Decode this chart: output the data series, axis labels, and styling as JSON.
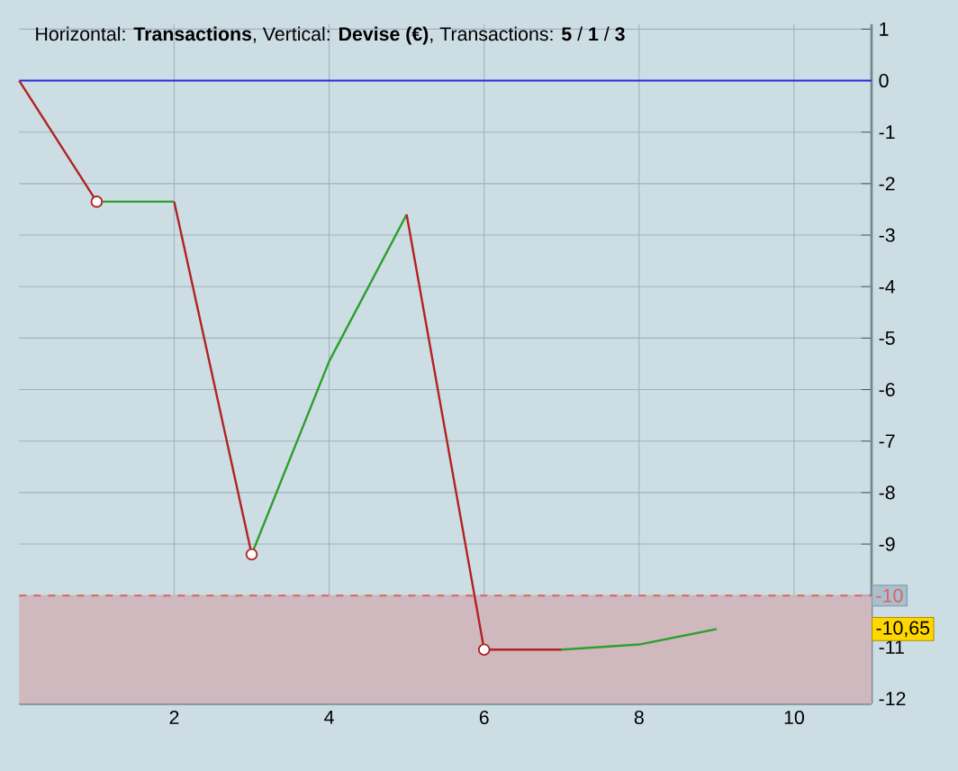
{
  "chart_data": {
    "type": "line",
    "title": "Horizontal: **Transactions**, Vertical: **Devise (€)**, Transactions: **5** / **1** / **3**",
    "series": [
      {
        "color": "#b22222",
        "x": [
          0,
          1
        ],
        "values": [
          0,
          -2.35
        ]
      },
      {
        "color": "#2ca02c",
        "x": [
          1,
          2
        ],
        "values": [
          -2.35,
          -2.35
        ]
      },
      {
        "color": "#b22222",
        "x": [
          2,
          3
        ],
        "values": [
          -2.35,
          -9.2
        ]
      },
      {
        "color": "#2ca02c",
        "x": [
          3,
          4,
          5
        ],
        "values": [
          -9.2,
          -5.45,
          -2.6
        ]
      },
      {
        "color": "#b22222",
        "x": [
          5,
          6,
          7
        ],
        "values": [
          -2.6,
          -11.05,
          -11.05
        ]
      },
      {
        "color": "#2ca02c",
        "x": [
          7,
          8,
          9
        ],
        "values": [
          -11.05,
          -10.95,
          -10.65
        ]
      },
      {
        "type": "scatter",
        "marker": "circle",
        "color": "#b22222",
        "x": [
          1,
          3,
          6
        ],
        "values": [
          -2.35,
          -9.2,
          -11.05
        ]
      }
    ],
    "xlim": [
      0,
      11
    ],
    "ylim": [
      -12.1,
      1.1
    ],
    "xticks": [
      2,
      4,
      6,
      8,
      10
    ],
    "yticks": [
      -12,
      -11,
      -10,
      -9,
      -8,
      -7,
      -6,
      -5,
      -4,
      -3,
      -2,
      -1,
      0,
      1
    ],
    "grid": true,
    "line_style": "solid",
    "ref_lines": [
      {
        "axis": "y",
        "value": 0,
        "color": "#2b2bdf",
        "line_style": "solid"
      },
      {
        "axis": "y",
        "value": -10,
        "label": "-10",
        "color": "#e06060",
        "line_style": "dashed"
      }
    ],
    "bands": [
      {
        "axis": "y",
        "from": -12.1,
        "to": -10,
        "color": "#d0b8bf"
      }
    ],
    "annotations": [
      {
        "text": "-10,65",
        "y": -10.65
      }
    ]
  }
}
